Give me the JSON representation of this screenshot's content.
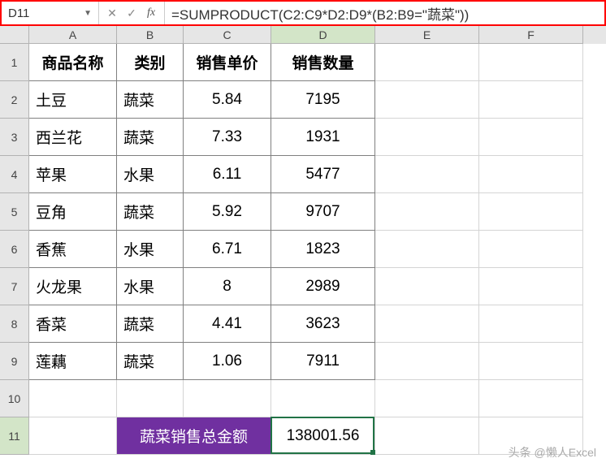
{
  "namebox": {
    "value": "D11"
  },
  "formula": "=SUMPRODUCT(C2:C9*D2:D9*(B2:B9=\"蔬菜\"))",
  "columns": {
    "letters": [
      "A",
      "B",
      "C",
      "D",
      "E",
      "F"
    ],
    "widths": [
      108,
      82,
      108,
      128,
      128,
      128
    ],
    "selected_index": 3
  },
  "rows": {
    "count": 11,
    "height": 46,
    "selected_index": 10
  },
  "table": {
    "headers": [
      "商品名称",
      "类别",
      "销售单价",
      "销售数量"
    ],
    "data": [
      [
        "土豆",
        "蔬菜",
        "5.84",
        "7195"
      ],
      [
        "西兰花",
        "蔬菜",
        "7.33",
        "1931"
      ],
      [
        "苹果",
        "水果",
        "6.11",
        "5477"
      ],
      [
        "豆角",
        "蔬菜",
        "5.92",
        "9707"
      ],
      [
        "香蕉",
        "水果",
        "6.71",
        "1823"
      ],
      [
        "火龙果",
        "水果",
        "8",
        "2989"
      ],
      [
        "香菜",
        "蔬菜",
        "4.41",
        "3623"
      ],
      [
        "莲藕",
        "蔬菜",
        "1.06",
        "7911"
      ]
    ]
  },
  "summary": {
    "label": "蔬菜销售总金额",
    "value": "138001.56"
  },
  "colors": {
    "purple_bg": "#7030a0",
    "selection_green": "#217346",
    "highlight_red": "#ff0000"
  },
  "watermark": "头条 @懒人Excel"
}
